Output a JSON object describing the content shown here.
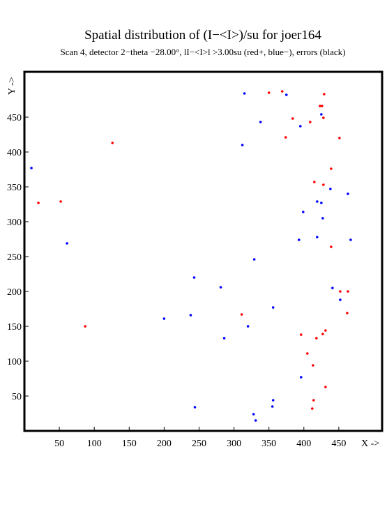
{
  "chart_data": {
    "type": "scatter",
    "title": "Spatial distribution of (I−<I>)/su for joer164",
    "subtitle": "Scan  4, detector 2−theta −28.00°, lI−<I>l >3.00su (red+, blue−), errors (black)",
    "x_label": "X ->",
    "y_label": "Y ->",
    "xlim": [
      0,
      512
    ],
    "ylim": [
      0,
      515
    ],
    "xticks": [
      50,
      100,
      150,
      200,
      250,
      300,
      350,
      400,
      450
    ],
    "yticks": [
      50,
      100,
      150,
      200,
      250,
      300,
      350,
      400,
      450
    ],
    "series": [
      {
        "color": "#ff0000",
        "x": [
          350,
          369,
          429,
          384,
          423,
          426,
          428,
          409,
          374,
          451,
          126,
          439,
          415,
          428,
          20,
          52,
          439,
          452,
          463,
          462,
          311,
          87,
          396,
          427,
          418,
          431,
          405,
          413,
          431,
          414,
          412
        ],
        "values": [
          485,
          487,
          483,
          448,
          466,
          466,
          449,
          443,
          421,
          420,
          413,
          376,
          357,
          353,
          327,
          329,
          264,
          200,
          200,
          169,
          167,
          150,
          138,
          139,
          133,
          144,
          111,
          94,
          63,
          44,
          32
        ]
      },
      {
        "color": "#0000ff",
        "x": [
          315,
          375,
          425,
          338,
          395,
          312,
          10,
          438,
          463,
          419,
          425,
          399,
          427,
          61,
          393,
          419,
          467,
          329,
          243,
          281,
          441,
          452,
          356,
          238,
          200,
          320,
          286,
          396,
          356,
          355,
          244,
          328,
          331
        ],
        "values": [
          484,
          482,
          454,
          443,
          437,
          410,
          377,
          347,
          340,
          329,
          327,
          314,
          305,
          269,
          274,
          278,
          274,
          246,
          220,
          206,
          205,
          188,
          177,
          166,
          161,
          150,
          133,
          77,
          44,
          35,
          34,
          24,
          15
        ]
      }
    ]
  }
}
